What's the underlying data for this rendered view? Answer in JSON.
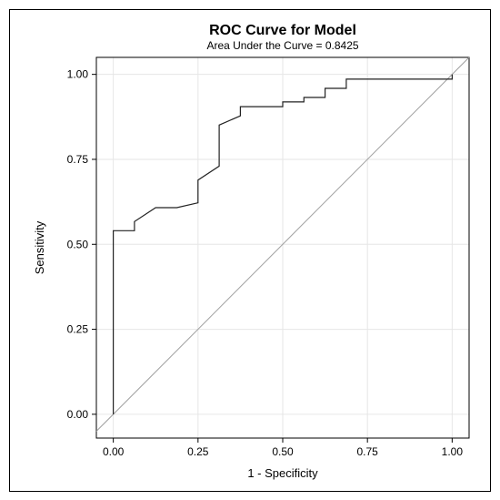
{
  "chart_data": {
    "type": "line",
    "title": "ROC Curve for Model",
    "subtitle": "Area Under the Curve = 0.8425",
    "xlabel": "1 - Specificity",
    "ylabel": "Sensitivity",
    "xlim": [
      -0.05,
      1.05
    ],
    "ylim": [
      -0.07,
      1.05
    ],
    "xticks": [
      0.0,
      0.25,
      0.5,
      0.75,
      1.0
    ],
    "yticks": [
      0.0,
      0.25,
      0.5,
      0.75,
      1.0
    ],
    "xtick_labels": [
      "0.00",
      "0.25",
      "0.50",
      "0.75",
      "1.00"
    ],
    "ytick_labels": [
      "0.00",
      "0.25",
      "0.50",
      "0.75",
      "1.00"
    ],
    "grid": true,
    "series": [
      {
        "style": "step",
        "x": [
          0.0,
          0.0,
          0.0625,
          0.0625,
          0.125,
          0.1875,
          0.25,
          0.25,
          0.3125,
          0.3125,
          0.375,
          0.375,
          0.5,
          0.5,
          0.5625,
          0.5625,
          0.625,
          0.625,
          0.6875,
          0.6875,
          1.0,
          1.0
        ],
        "y": [
          0.0,
          0.54,
          0.54,
          0.567,
          0.608,
          0.608,
          0.622,
          0.689,
          0.73,
          0.851,
          0.878,
          0.905,
          0.905,
          0.919,
          0.919,
          0.932,
          0.932,
          0.959,
          0.959,
          0.986,
          0.986,
          1.0
        ]
      },
      {
        "style": "reference",
        "x": [
          -0.05,
          1.05
        ],
        "y": [
          -0.05,
          1.05
        ]
      }
    ],
    "colors": {
      "curve": "#222222",
      "reference": "#a0a0a0",
      "grid": "#e6e6e6"
    }
  }
}
